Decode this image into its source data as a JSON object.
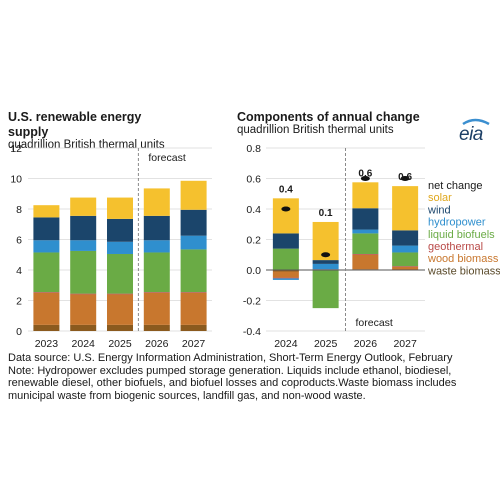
{
  "chart_data": [
    {
      "type": "bar",
      "stacked": true,
      "title": "U.S. renewable energy supply",
      "ylabel": "quadrillion British thermal units",
      "categories": [
        "2023",
        "2024",
        "2025",
        "2026",
        "2027"
      ],
      "ylim": [
        0,
        12
      ],
      "yticks": [
        "0",
        "2",
        "4",
        "6",
        "8",
        "10",
        "12"
      ],
      "annotation": "forecast",
      "series": [
        {
          "name": "waste biomass",
          "color": "#8b5a1e",
          "values": [
            0.4,
            0.4,
            0.4,
            0.4,
            0.4
          ]
        },
        {
          "name": "wood biomass",
          "color": "#c8772e",
          "values": [
            2.1,
            2.0,
            2.0,
            2.1,
            2.1
          ]
        },
        {
          "name": "geothermal",
          "color": "#b94a48",
          "values": [
            0.05,
            0.05,
            0.05,
            0.05,
            0.05
          ]
        },
        {
          "name": "liquid biofuels",
          "color": "#6aab45",
          "values": [
            2.6,
            2.8,
            2.6,
            2.6,
            2.8
          ]
        },
        {
          "name": "hydropower",
          "color": "#2f8fce",
          "values": [
            0.8,
            0.7,
            0.8,
            0.8,
            0.9
          ]
        },
        {
          "name": "wind",
          "color": "#1b456b",
          "values": [
            1.5,
            1.6,
            1.5,
            1.6,
            1.7
          ]
        },
        {
          "name": "solar",
          "color": "#f5c12e",
          "values": [
            0.8,
            1.2,
            1.4,
            1.8,
            1.9
          ]
        }
      ]
    },
    {
      "type": "bar",
      "stacked": true,
      "title": "Components of annual change",
      "ylabel": "quadrillion British thermal units",
      "categories": [
        "2024",
        "2025",
        "2026",
        "2027"
      ],
      "ylim": [
        -0.4,
        0.8
      ],
      "yticks": [
        "-0.4",
        "-0.2",
        "0.0",
        "0.2",
        "0.4",
        "0.6",
        "0.8"
      ],
      "annotation": "forecast",
      "net_change": [
        0.4,
        0.1,
        0.6,
        0.6
      ],
      "net_labels": [
        "0.4",
        "0.1",
        "0.6",
        "0.6"
      ],
      "series": [
        {
          "name": "waste biomass",
          "color": "#8b5a1e",
          "values": [
            -0.01,
            0.0,
            0.005,
            0.0
          ]
        },
        {
          "name": "wood biomass",
          "color": "#c8772e",
          "values": [
            -0.04,
            0.0,
            0.095,
            0.02
          ]
        },
        {
          "name": "geothermal",
          "color": "#b94a48",
          "values": [
            -0.005,
            0.005,
            0.005,
            0.005
          ]
        },
        {
          "name": "liquid biofuels",
          "color": "#6aab45",
          "values": [
            0.14,
            -0.25,
            0.135,
            0.09
          ]
        },
        {
          "name": "hydropower",
          "color": "#2f8fce",
          "values": [
            -0.01,
            0.035,
            0.025,
            0.045
          ]
        },
        {
          "name": "wind",
          "color": "#1b456b",
          "values": [
            0.1,
            0.025,
            0.14,
            0.1
          ]
        },
        {
          "name": "solar",
          "color": "#f5c12e",
          "values": [
            0.23,
            0.25,
            0.17,
            0.29
          ]
        }
      ],
      "legend": [
        "net change",
        "solar",
        "wind",
        "hydropower",
        "liquid biofuels",
        "geothermal",
        "wood biomass",
        "waste biomass"
      ],
      "legend_colors": [
        "#1a1a1a",
        "#e0a81e",
        "#1b456b",
        "#2f8fce",
        "#6aab45",
        "#b94a48",
        "#c8772e",
        "#5a4a2a"
      ]
    }
  ],
  "titles": {
    "left_title": "U.S. renewable energy supply",
    "left_sub": "quadrillion British thermal units",
    "right_title": "Components of annual change",
    "right_sub": "quadrillion British thermal units"
  },
  "logo": "eia",
  "footnote": [
    "Data source: U.S. Energy Information Administration, Short-Term Energy Outlook, February",
    "Note: Hydropower excludes pumped storage generation. Liquids include ethanol, biodiesel,",
    "renewable diesel, other biofuels, and biofuel losses and coproducts.Waste biomass includes",
    "municipal waste from biogenic sources, landfill gas, and non-wood waste."
  ]
}
